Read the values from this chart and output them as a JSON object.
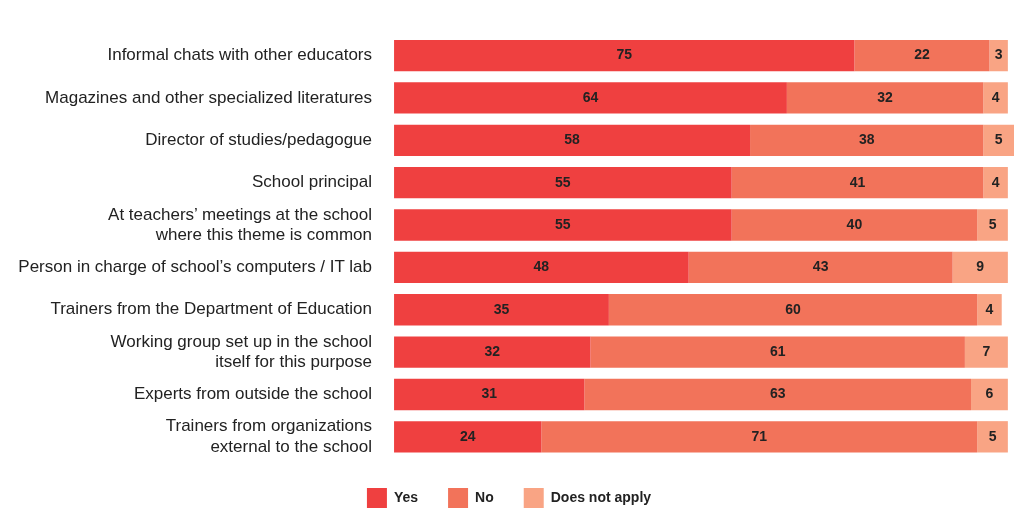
{
  "chart_data": {
    "type": "bar",
    "orientation": "horizontal",
    "stacked": true,
    "data_labels": true,
    "tick_labels": "y",
    "legend": "bottom",
    "xlim": [
      0,
      101
    ],
    "categories": [
      "Informal chats with other educators",
      "Magazines and other specialized literatures",
      "Director of studies/pedagogue",
      "School principal",
      "At teachers’ meetings at the school\nwhere this theme is common",
      "Person in charge of school’s computers / IT lab",
      "Trainers from the Department of Education",
      "Working group set up in the school\nitself for this purpose",
      "Experts from outside the school",
      "Trainers from organizations\nexternal to the school"
    ],
    "series": [
      {
        "name": "Yes",
        "color": "#ef4040",
        "values": [
          75,
          64,
          58,
          55,
          55,
          48,
          35,
          32,
          31,
          24
        ]
      },
      {
        "name": "No",
        "color": "#f2735a",
        "values": [
          22,
          32,
          38,
          41,
          40,
          43,
          60,
          61,
          63,
          71
        ]
      },
      {
        "name": "Does not apply",
        "color": "#f9a484",
        "values": [
          3,
          4,
          5,
          4,
          5,
          9,
          4,
          7,
          6,
          5
        ]
      }
    ]
  }
}
